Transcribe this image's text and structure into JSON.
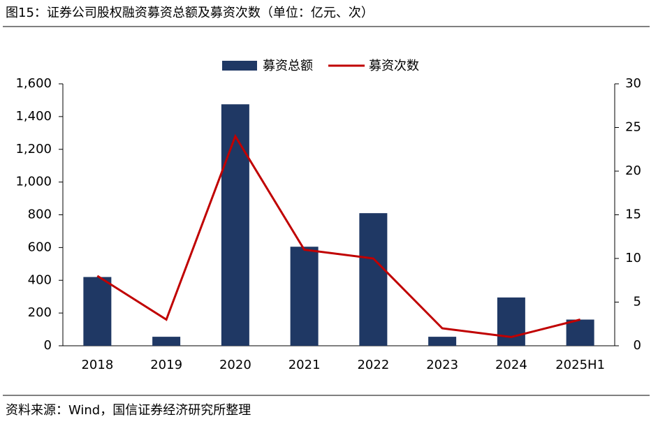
{
  "chart_data": {
    "type": "bar",
    "title": "图15：证券公司股权融资募资总额及募资次数（单位：亿元、次）",
    "source": "资料来源：Wind，国信证券经济研究所整理",
    "categories": [
      "2018",
      "2019",
      "2020",
      "2021",
      "2022",
      "2023",
      "2024",
      "2025H1"
    ],
    "series": [
      {
        "name": "募资总额",
        "type": "bar",
        "color": "#1f3864",
        "values": [
          420,
          55,
          1475,
          605,
          810,
          55,
          295,
          160
        ]
      },
      {
        "name": "募资次数",
        "type": "line",
        "axis": "y2",
        "color": "#c00000",
        "values": [
          8,
          3,
          24,
          11,
          10,
          2,
          1,
          3
        ]
      }
    ],
    "ylim": [
      0,
      1600
    ],
    "yticks": [
      0,
      200,
      400,
      600,
      800,
      {
        "value": 1000,
        "label": "1,000"
      },
      {
        "value": 1200,
        "label": "1,200"
      },
      {
        "value": 1400,
        "label": "1,400"
      },
      {
        "value": 1600,
        "label": "1,600"
      }
    ],
    "y2lim": [
      0,
      30
    ],
    "y2ticks": [
      0,
      5,
      10,
      15,
      20,
      25,
      30
    ],
    "legend": "top"
  }
}
